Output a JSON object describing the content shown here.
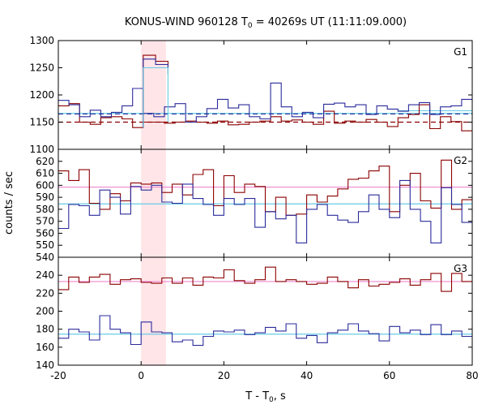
{
  "chart_data": {
    "type": "line",
    "title": {
      "pre": "KONUS-WIND 960128 T",
      "sub": "0",
      "post": " = 40269s UT (11:11:09.000)"
    },
    "xlabel": {
      "pre": "T - T",
      "sub": "0",
      "post": ", s"
    },
    "ylabel": "counts / sec",
    "xlim": [
      -20,
      80
    ],
    "xticks": [
      -20,
      0,
      20,
      40,
      60,
      80
    ],
    "colors": {
      "red": "#8b0000",
      "blue": "#2b2b9c",
      "cyan": "#66cbe6",
      "pink": "#ee88d0",
      "shade": "#ffe5e8"
    },
    "highlight_interval": [
      0.0,
      6.0
    ],
    "panels": [
      {
        "name": "G1",
        "ylim": [
          1100,
          1300
        ],
        "yticks": [
          1100,
          1150,
          1200,
          1250,
          1300
        ],
        "bin_width": 2.944,
        "x_start": -20,
        "series": [
          {
            "color": "red",
            "values": [
              1180,
              1184,
              1150,
              1146,
              1158,
              1160,
              1156,
              1140,
              1150,
              1150,
              1148,
              1150,
              1152,
              1150,
              1148,
              1152,
              1145,
              1146,
              1150,
              1152,
              1160,
              1152,
              1154,
              1150,
              1146,
              1170,
              1148,
              1152,
              1150,
              1155,
              1150,
              1142,
              1158,
              1164,
              1182,
              1138,
              1160,
              1151,
              1134
            ]
          },
          {
            "color": "blue",
            "values": [
              1190,
              1182,
              1160,
              1172,
              1160,
              1168,
              1180,
              1212,
              1166,
              1160,
              1178,
              1184,
              1150,
              1160,
              1175,
              1192,
              1176,
              1182,
              1160,
              1156,
              1222,
              1178,
              1160,
              1168,
              1158,
              1183,
              1185,
              1178,
              1182,
              1164,
              1180,
              1174,
              1170,
              1182,
              1186,
              1164,
              1178,
              1180,
              1192
            ]
          }
        ],
        "peak_red": {
          "x": [
            0.5,
            3.5,
            6.5
          ],
          "values": [
            1273,
            1262,
            1238
          ]
        },
        "peak_blue": {
          "x": [
            0.5,
            3.5,
            6.5
          ],
          "values": [
            1266,
            1256,
            1250
          ]
        },
        "peak_cyan": {
          "x": [
            0.5,
            6.5
          ],
          "values": [
            1250
          ]
        },
        "bg_lines": [
          {
            "color": "cyan",
            "value": 1166,
            "style": "solid"
          },
          {
            "color": "blue",
            "value": 1165,
            "style": "dashed"
          },
          {
            "color": "red",
            "value": 1150,
            "style": "dashed"
          },
          {
            "color": "cyan",
            "value": 1171,
            "style": "solid",
            "from": 62
          }
        ]
      },
      {
        "name": "G2",
        "ylim": [
          540,
          630
        ],
        "yticks": [
          540,
          550,
          560,
          570,
          580,
          590,
          600,
          610,
          620
        ],
        "bin_width": 2.944,
        "x_start": -20,
        "series": [
          {
            "color": "red",
            "values": [
              612,
              604,
              613,
              585,
              580,
              593,
              587,
              602,
              601,
              602,
              594,
              601,
              592,
              609,
              613,
              583,
              608,
              594,
              601,
              599,
              578,
              590,
              575,
              576,
              592,
              586,
              591,
              597,
              605,
              606,
              612,
              616,
              578,
              600,
              610,
              587,
              581,
              621,
              580,
              588
            ]
          },
          {
            "color": "blue",
            "values": [
              564,
              584,
              583,
              575,
              596,
              590,
              576,
              599,
              596,
              600,
              586,
              585,
              601,
              589,
              584,
              575,
              589,
              584,
              589,
              565,
              578,
              572,
              575,
              552,
              580,
              584,
              575,
              571,
              569,
              578,
              592,
              580,
              573,
              604,
              580,
              570,
              552,
              598,
              584,
              569
            ]
          }
        ],
        "bg_lines": [
          {
            "color": "pink",
            "value": 598.5,
            "style": "solid"
          },
          {
            "color": "cyan",
            "value": 584.5,
            "style": "solid"
          }
        ]
      },
      {
        "name": "G3",
        "ylim": [
          140,
          260
        ],
        "yticks": [
          140,
          160,
          180,
          200,
          220,
          240
        ],
        "bin_width": 2.944,
        "x_start": -20,
        "series": [
          {
            "color": "red",
            "values": [
              224,
              238,
              232,
              238,
              241,
              230,
              235,
              236,
              232,
              231,
              237,
              231,
              237,
              229,
              238,
              237,
              246,
              234,
              231,
              235,
              249,
              233,
              235,
              233,
              230,
              231,
              238,
              233,
              226,
              235,
              228,
              230,
              232,
              236,
              229,
              235,
              242,
              222,
              242,
              233
            ]
          },
          {
            "color": "blue",
            "values": [
              170,
              180,
              177,
              168,
              195,
              180,
              176,
              163,
              188,
              177,
              176,
              166,
              168,
              162,
              172,
              178,
              177,
              179,
              174,
              176,
              182,
              178,
              186,
              170,
              173,
              165,
              176,
              179,
              186,
              178,
              175,
              167,
              183,
              176,
              179,
              174,
              185,
              174,
              178,
              172
            ]
          }
        ],
        "bg_lines": [
          {
            "color": "pink",
            "value": 233,
            "style": "solid"
          },
          {
            "color": "cyan",
            "value": 174.5,
            "style": "solid"
          }
        ]
      }
    ]
  }
}
